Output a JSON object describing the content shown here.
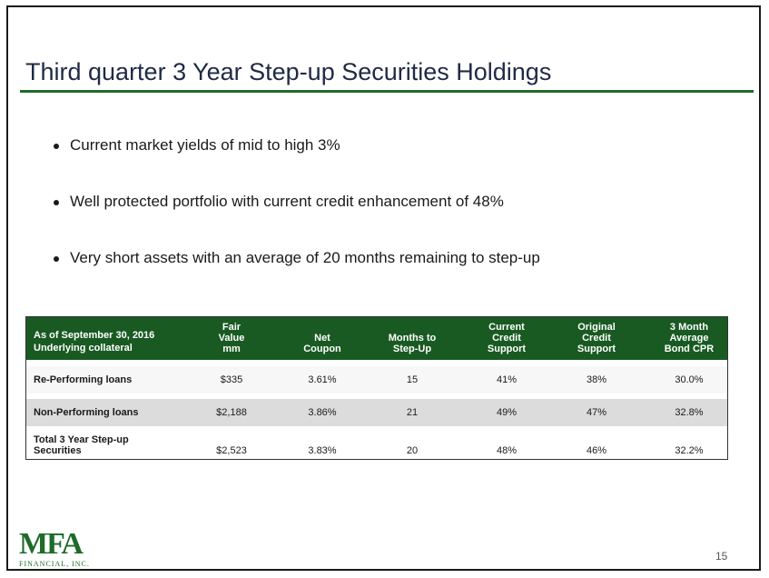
{
  "slide": {
    "title": "Third quarter 3 Year Step-up Securities Holdings",
    "bullets": [
      "Current market yields of mid to high 3%",
      "Well protected portfolio with current credit enhancement of 48%",
      "Very short assets with an average of 20 months remaining to step-up"
    ],
    "page_number": "15"
  },
  "table": {
    "header": {
      "as_of": "As of September 30, 2016",
      "underlying": "Underlying collateral",
      "fair_value": [
        "Fair",
        "Value",
        "mm"
      ],
      "net_coupon": [
        "Net",
        "Coupon"
      ],
      "months": [
        "Months to",
        "Step-Up"
      ],
      "current_credit": [
        "Current",
        "Credit",
        "Support"
      ],
      "original_credit": [
        "Original",
        "Credit",
        "Support"
      ],
      "cpr": [
        "3 Month",
        "Average",
        "Bond CPR"
      ]
    },
    "rows": [
      {
        "label": "Re-Performing loans",
        "fair_value": "$335",
        "net_coupon": "3.61%",
        "months": "15",
        "current_credit": "41%",
        "original_credit": "38%",
        "cpr": "30.0%"
      },
      {
        "label": "Non-Performing loans",
        "fair_value": "$2,188",
        "net_coupon": "3.86%",
        "months": "21",
        "current_credit": "49%",
        "original_credit": "47%",
        "cpr": "32.8%"
      },
      {
        "label_line1": "Total 3 Year Step-up",
        "label_line2": "Securities",
        "fair_value": "$2,523",
        "net_coupon": "3.83%",
        "months": "20",
        "current_credit": "48%",
        "original_credit": "46%",
        "cpr": "32.2%"
      }
    ]
  },
  "logo": {
    "mark": "MFA",
    "sub": "FINANCIAL, INC."
  },
  "colors": {
    "brand_green": "#1e6b2a",
    "header_green": "#195a22",
    "title_text": "#1f2a44"
  }
}
